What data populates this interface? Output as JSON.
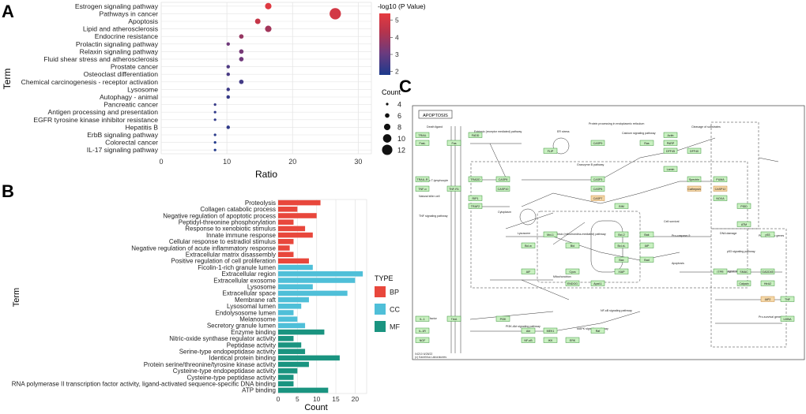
{
  "panel_labels": {
    "a": "A",
    "b": "B",
    "c": "C"
  },
  "colors": {
    "bp": "#e8473c",
    "cc": "#4fbfd8",
    "mf": "#1a9480",
    "grid": "#e5e5e5",
    "kegg_box": "#c8f0c0",
    "kegg_border": "#2a8a2a"
  },
  "chart_data": [
    {
      "type": "scatter",
      "subtype": "bubble",
      "xlabel": "Ratio",
      "ylabel": "Term",
      "xlim": [
        0,
        32
      ],
      "xticks": [
        0,
        10,
        20,
        30
      ],
      "grid": true,
      "legend_position": "right",
      "color_legend": {
        "title": "-log10 (P Value)",
        "ticks": [
          2,
          3,
          4,
          5
        ],
        "range": [
          1.8,
          5.4
        ],
        "colors": [
          "#1c3a8c",
          "#6a3b7f",
          "#b5344d",
          "#e63a3f"
        ]
      },
      "size_legend": {
        "title": "Count",
        "values": [
          4,
          6,
          8,
          10,
          12
        ]
      },
      "terms": [
        "Estrogen signaling pathway",
        "Pathways in cancer",
        "Apoptosis",
        "Lipid and atherosclerosis",
        "Endocrine resistance",
        "Prolactin signaling pathway",
        "Relaxin signaling pathway",
        "Fluid shear stress and atherosclerosis",
        "Prostate cancer",
        "Osteoclast differentiation",
        "Chemical carcinogenesis - receptor activation",
        "Lysosome",
        "Autophagy - animal",
        "Pancreatic cancer",
        "Antigen processing and presentation",
        "EGFR tyrosine kinase inhibitor resistance",
        "Hepatitis B",
        "ErbB signaling pathway",
        "Colorectal cancer",
        "IL-17 signaling pathway"
      ],
      "ratio": [
        16.3,
        26.5,
        14.7,
        16.3,
        12.2,
        10.2,
        12.2,
        12.2,
        10.2,
        10.2,
        12.2,
        10.2,
        10.2,
        8.2,
        8.2,
        8.2,
        10.2,
        8.2,
        8.2,
        8.2
      ],
      "count": [
        8,
        13,
        7,
        8,
        6,
        5,
        6,
        6,
        5,
        5,
        6,
        5,
        5,
        4,
        4,
        4,
        5,
        4,
        4,
        4
      ],
      "neglog10p": [
        5.2,
        4.9,
        4.6,
        3.9,
        3.7,
        3.1,
        3.2,
        3.1,
        2.6,
        2.5,
        2.4,
        2.3,
        2.2,
        2.2,
        2.1,
        2.1,
        2.1,
        2.0,
        1.9,
        1.9
      ]
    },
    {
      "type": "bar",
      "orientation": "horizontal",
      "xlabel": "Count",
      "ylabel": "Term",
      "xlim": [
        0,
        23
      ],
      "xticks": [
        0,
        5,
        10,
        15,
        20
      ],
      "legend_title": "TYPE",
      "legend_position": "right",
      "legend": [
        "BP",
        "CC",
        "MF"
      ],
      "categories": [
        "Proteolysis",
        "Collagen catabolic process",
        "Negative regulation of apoptotic process",
        "Peptidyl-threonine phosphorylation",
        "Response to xenobiotic stimulus",
        "Innate immune response",
        "Cellular response to estradiol stimulus",
        "Negative regulation of acute inflammatory response",
        "Extracellular matrix disassembly",
        "Positive regulation of cell proliferation",
        "Ficolin-1-rich granule lumen",
        "Extracellular region",
        "Extracellular exosome",
        "Lysosome",
        "Extracellular space",
        "Membrane raft",
        "Lysosomal lumen",
        "Endolysosome lumen",
        "Melanosome",
        "Secretory granule lumen",
        "Enzyme binding",
        "Nitric-oxide synthase regulator activity",
        "Peptidase activity",
        "Serine-type endopeptidase activity",
        "Identical protein binding",
        "Protein serine/threonine/tyrosine kinase activity",
        "Cysteine-type endopeptidase activity",
        "Cysteine-type peptidase activity",
        "RNA polymerase II transcription factor activity, ligand-activated sequence-specific DNA binding",
        "ATP binding"
      ],
      "values": [
        11,
        5,
        10,
        4,
        7,
        9,
        4,
        3,
        4,
        8,
        9,
        22,
        20,
        9,
        18,
        8,
        6,
        4,
        5,
        7,
        12,
        4,
        6,
        7,
        16,
        8,
        5,
        4,
        4,
        13
      ],
      "types": [
        "BP",
        "BP",
        "BP",
        "BP",
        "BP",
        "BP",
        "BP",
        "BP",
        "BP",
        "BP",
        "CC",
        "CC",
        "CC",
        "CC",
        "CC",
        "CC",
        "CC",
        "CC",
        "CC",
        "CC",
        "MF",
        "MF",
        "MF",
        "MF",
        "MF",
        "MF",
        "MF",
        "MF",
        "MF",
        "MF"
      ]
    }
  ],
  "kegg": {
    "title": "APOPTOSIS",
    "footer": [
      "04210 6/28/22",
      "(c) Kanehisa Laboratories"
    ],
    "genes": [
      "TRAIL",
      "FasL",
      "Fas",
      "TRAIL-R",
      "TNF-α",
      "TNF-R1",
      "IL-1",
      "IL-1R",
      "NGF",
      "TrkA",
      "FADD",
      "TRADD",
      "RIP1",
      "TRAF2",
      "CASP8",
      "CASP10",
      "FLIP",
      "CASP3",
      "CASP6",
      "CASP7",
      "CASP9",
      "Bid",
      "Bcl-2",
      "Bcl-xL",
      "Bax",
      "Bak",
      "Bad",
      "BIM",
      "Cycs",
      "Apaf-1",
      "XIAP",
      "AIF",
      "ENDOG",
      "PIDD",
      "ATM",
      "p53",
      "PI3K",
      "Akt",
      "NF-κB",
      "IKK",
      "ERK",
      "MEK1",
      "Raf",
      "Ras",
      "PARP",
      "DFF45",
      "DFF40",
      "Actin",
      "Lamin",
      "Spectrin",
      "Cathepsin",
      "CASP12",
      "NOXA",
      "PUMA",
      "Mcl-1",
      "Bcl-w",
      "IAP",
      "SMAC",
      "HtrA2",
      "Calpain",
      "ITPR",
      "GADD45",
      "TNF",
      "LMNA",
      "IAP2"
    ],
    "labels": [
      "Death ligand",
      "Survival factor",
      "Cytotoxic T-lymphocyte",
      "Natural killer cell",
      "TNF signaling pathway",
      "ER stress",
      "Protein processing in endoplasmic reticulum",
      "Calcium signaling pathway",
      "Lysosome",
      "Mitochondrion",
      "Apoptosis",
      "Cell survival",
      "DNA damage",
      "DNA fragmentation",
      "Cleavage of substrates",
      "Granzyme B pathway",
      "Extrinsic (receptor mediated) pathway",
      "Intrinsic (mitochondria-mediated) pathway",
      "Pro-apoptotic genes",
      "Pro-survival genes",
      "PI3K-Akt signaling pathway",
      "NF-κB signaling pathway",
      "MAPK signaling pathway",
      "p53 signaling pathway",
      "Cytoplasm",
      "Pro-caspase-9"
    ]
  }
}
